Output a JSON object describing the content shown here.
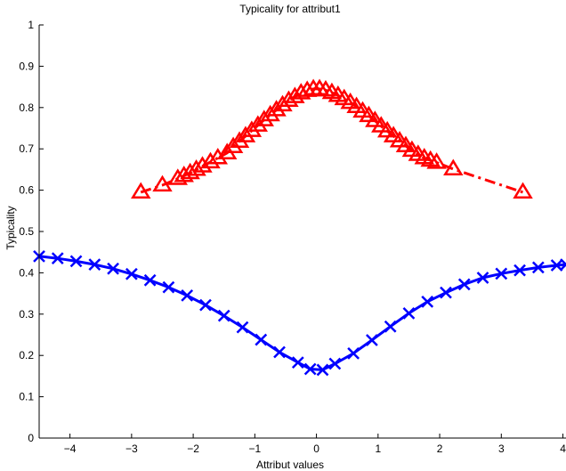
{
  "chart_data": {
    "type": "scatter",
    "title": "Typicality for attribut1",
    "xlabel": "Attribut values",
    "ylabel": "Typicality",
    "xlim": [
      -4.5,
      4.05
    ],
    "ylim": [
      0,
      1
    ],
    "xticks": [
      -4,
      -3,
      -2,
      -1,
      0,
      1,
      2,
      3,
      4
    ],
    "xtick_labels": [
      "−4",
      "−3",
      "−2",
      "−1",
      "0",
      "1",
      "2",
      "3",
      "4"
    ],
    "yticks": [
      0,
      0.1,
      0.2,
      0.3,
      0.4,
      0.5,
      0.6,
      0.7,
      0.8,
      0.9,
      1
    ],
    "ytick_labels": [
      "0",
      "0.1",
      "0.2",
      "0.3",
      "0.4",
      "0.5",
      "0.6",
      "0.7",
      "0.8",
      "0.9",
      "1"
    ],
    "grid": false,
    "legend": "none",
    "series": [
      {
        "marker": "triangle",
        "line_style": "dash-dot",
        "color": "#ff0000",
        "x": [
          -2.85,
          -2.5,
          -2.25,
          -2.15,
          -2.05,
          -1.95,
          -1.85,
          -1.72,
          -1.6,
          -1.45,
          -1.35,
          -1.25,
          -1.15,
          -1.05,
          -0.95,
          -0.85,
          -0.75,
          -0.65,
          -0.55,
          -0.45,
          -0.35,
          -0.25,
          -0.15,
          -0.05,
          0.05,
          0.15,
          0.25,
          0.35,
          0.45,
          0.55,
          0.65,
          0.75,
          0.85,
          0.95,
          1.05,
          1.15,
          1.25,
          1.35,
          1.45,
          1.55,
          1.65,
          1.75,
          1.85,
          1.95,
          2.22,
          3.35
        ],
        "y": [
          0.595,
          0.612,
          0.628,
          0.635,
          0.642,
          0.65,
          0.658,
          0.668,
          0.678,
          0.69,
          0.705,
          0.718,
          0.731,
          0.744,
          0.757,
          0.77,
          0.782,
          0.794,
          0.806,
          0.817,
          0.826,
          0.835,
          0.841,
          0.845,
          0.845,
          0.842,
          0.836,
          0.829,
          0.821,
          0.812,
          0.802,
          0.791,
          0.78,
          0.768,
          0.755,
          0.743,
          0.731,
          0.719,
          0.707,
          0.696,
          0.686,
          0.678,
          0.672,
          0.667,
          0.651,
          0.595
        ]
      },
      {
        "marker": "x",
        "line_style": "solid",
        "color": "#0000ff",
        "x": [
          -4.5,
          -4.2,
          -3.9,
          -3.6,
          -3.3,
          -3.0,
          -2.7,
          -2.4,
          -2.1,
          -1.8,
          -1.5,
          -1.2,
          -0.9,
          -0.6,
          -0.3,
          -0.1,
          0.1,
          0.3,
          0.6,
          0.9,
          1.2,
          1.5,
          1.8,
          2.1,
          2.4,
          2.7,
          3.0,
          3.3,
          3.6,
          3.9,
          4.05
        ],
        "y": [
          0.44,
          0.435,
          0.428,
          0.42,
          0.41,
          0.397,
          0.382,
          0.365,
          0.345,
          0.322,
          0.296,
          0.268,
          0.238,
          0.208,
          0.183,
          0.167,
          0.165,
          0.18,
          0.205,
          0.237,
          0.27,
          0.302,
          0.33,
          0.352,
          0.372,
          0.388,
          0.398,
          0.406,
          0.413,
          0.418,
          0.42
        ]
      }
    ]
  }
}
